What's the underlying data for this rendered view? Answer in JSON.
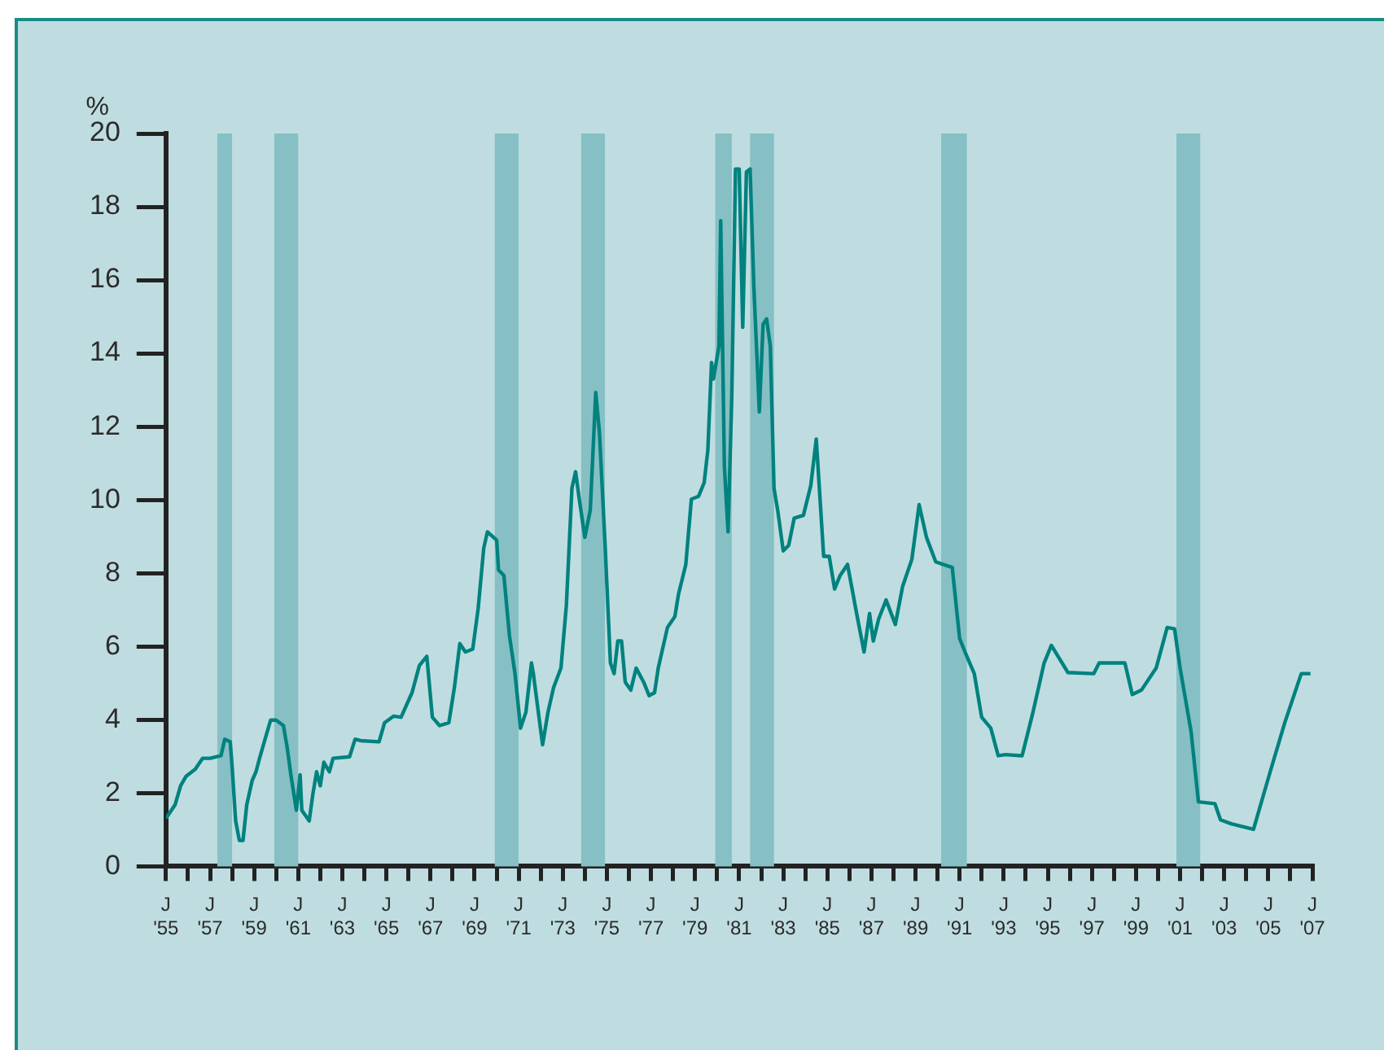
{
  "chart_data": {
    "type": "line",
    "ylabel": "%",
    "xlim": [
      "1955-01",
      "2007-01"
    ],
    "ylim": [
      0,
      20
    ],
    "yticks": [
      0,
      2,
      4,
      6,
      8,
      10,
      12,
      14,
      16,
      18,
      20
    ],
    "xticks": [
      {
        "value": "1955-01",
        "label": "J\n'55"
      },
      {
        "value": "1956-01",
        "label": null
      },
      {
        "value": "1957-01",
        "label": "J\n'57"
      },
      {
        "value": "1958-01",
        "label": null
      },
      {
        "value": "1959-01",
        "label": "J\n'59"
      },
      {
        "value": "1960-01",
        "label": null
      },
      {
        "value": "1961-01",
        "label": "J\n'61"
      },
      {
        "value": "1962-01",
        "label": null
      },
      {
        "value": "1963-01",
        "label": "J\n'63"
      },
      {
        "value": "1964-01",
        "label": null
      },
      {
        "value": "1965-01",
        "label": "J\n'65"
      },
      {
        "value": "1966-01",
        "label": null
      },
      {
        "value": "1967-01",
        "label": "J\n'67"
      },
      {
        "value": "1968-01",
        "label": null
      },
      {
        "value": "1969-01",
        "label": "J\n'69"
      },
      {
        "value": "1970-01",
        "label": null
      },
      {
        "value": "1971-01",
        "label": "J\n'71"
      },
      {
        "value": "1972-01",
        "label": null
      },
      {
        "value": "1973-01",
        "label": "J\n'73"
      },
      {
        "value": "1974-01",
        "label": null
      },
      {
        "value": "1975-01",
        "label": "J\n'75"
      },
      {
        "value": "1976-01",
        "label": null
      },
      {
        "value": "1977-01",
        "label": "J\n'77"
      },
      {
        "value": "1978-01",
        "label": null
      },
      {
        "value": "1979-01",
        "label": "J\n'79"
      },
      {
        "value": "1980-01",
        "label": null
      },
      {
        "value": "1981-01",
        "label": "J\n'81"
      },
      {
        "value": "1982-01",
        "label": null
      },
      {
        "value": "1983-01",
        "label": "J\n'83"
      },
      {
        "value": "1984-01",
        "label": null
      },
      {
        "value": "1985-01",
        "label": "J\n'85"
      },
      {
        "value": "1986-01",
        "label": null
      },
      {
        "value": "1987-01",
        "label": "J\n'87"
      },
      {
        "value": "1988-01",
        "label": null
      },
      {
        "value": "1989-01",
        "label": "J\n'89"
      },
      {
        "value": "1990-01",
        "label": null
      },
      {
        "value": "1991-01",
        "label": "J\n'91"
      },
      {
        "value": "1992-01",
        "label": null
      },
      {
        "value": "1993-01",
        "label": "J\n'93"
      },
      {
        "value": "1994-01",
        "label": null
      },
      {
        "value": "1995-01",
        "label": "J\n'95"
      },
      {
        "value": "1996-01",
        "label": null
      },
      {
        "value": "1997-01",
        "label": "J\n'97"
      },
      {
        "value": "1998-01",
        "label": null
      },
      {
        "value": "1999-01",
        "label": "J\n'99"
      },
      {
        "value": "2000-01",
        "label": null
      },
      {
        "value": "2001-01",
        "label": "J\n'01"
      },
      {
        "value": "2002-01",
        "label": null
      },
      {
        "value": "2003-01",
        "label": "J\n'03"
      },
      {
        "value": "2004-01",
        "label": null
      },
      {
        "value": "2005-01",
        "label": "J\n'05"
      },
      {
        "value": "2006-01",
        "label": null
      },
      {
        "value": "2007-01",
        "label": "J\n'07"
      }
    ],
    "bands": [
      {
        "axis": "x",
        "from": "1957-05",
        "to": "1958-01",
        "color": "#86c0c4"
      },
      {
        "axis": "x",
        "from": "1959-12",
        "to": "1961-01",
        "color": "#86c0c4"
      },
      {
        "axis": "x",
        "from": "1969-12",
        "to": "1971-01",
        "color": "#86c0c4"
      },
      {
        "axis": "x",
        "from": "1973-11",
        "to": "1974-12",
        "color": "#86c0c4"
      },
      {
        "axis": "x",
        "from": "1979-12",
        "to": "1980-09",
        "color": "#86c0c4"
      },
      {
        "axis": "x",
        "from": "1981-07",
        "to": "1982-08",
        "color": "#86c0c4"
      },
      {
        "axis": "x",
        "from": "1990-03",
        "to": "1991-05",
        "color": "#86c0c4"
      },
      {
        "axis": "x",
        "from": "2000-11",
        "to": "2001-12",
        "color": "#86c0c4"
      }
    ],
    "grid": false,
    "legend": false,
    "marker": "none",
    "line_style": "solid",
    "series": [
      {
        "color": "#00827f",
        "x": [
          "1955-01",
          "1955-06",
          "1955-09",
          "1955-12",
          "1956-05",
          "1956-09",
          "1957-01",
          "1957-07",
          "1957-09",
          "1957-12",
          "1958-01",
          "1958-03",
          "1958-05",
          "1958-07",
          "1958-09",
          "1958-12",
          "1959-02",
          "1959-04",
          "1959-07",
          "1959-10",
          "1960-01",
          "1960-05",
          "1960-07",
          "1960-09",
          "1960-12",
          "1961-02",
          "1961-03",
          "1961-07",
          "1961-09",
          "1961-11",
          "1962-01",
          "1962-03",
          "1962-06",
          "1962-08",
          "1963-05",
          "1963-08",
          "1963-11",
          "1964-09",
          "1964-12",
          "1965-05",
          "1965-09",
          "1966-03",
          "1966-07",
          "1966-11",
          "1967-02",
          "1967-06",
          "1967-11",
          "1968-02",
          "1968-05",
          "1968-08",
          "1968-12",
          "1969-03",
          "1969-06",
          "1969-08",
          "1970-01",
          "1970-02",
          "1970-05",
          "1970-08",
          "1970-11",
          "1971-02",
          "1971-05",
          "1971-08",
          "1971-09",
          "1972-02",
          "1972-05",
          "1972-08",
          "1972-12",
          "1973-03",
          "1973-06",
          "1973-08",
          "1973-10",
          "1974-01",
          "1974-04",
          "1974-07",
          "1974-09",
          "1974-12",
          "1975-03",
          "1975-05",
          "1975-07",
          "1975-09",
          "1975-11",
          "1976-02",
          "1976-05",
          "1976-09",
          "1976-12",
          "1977-03",
          "1977-05",
          "1977-10",
          "1978-02",
          "1978-04",
          "1978-08",
          "1978-11",
          "1979-03",
          "1979-06",
          "1979-08",
          "1979-10",
          "1979-11",
          "1980-02",
          "1980-03",
          "1980-05",
          "1980-07",
          "1980-09",
          "1980-11",
          "1981-01",
          "1981-03",
          "1981-05",
          "1981-07",
          "1981-09",
          "1981-12",
          "1982-02",
          "1982-04",
          "1982-06",
          "1982-08",
          "1982-10",
          "1983-01",
          "1983-04",
          "1983-07",
          "1983-12",
          "1984-04",
          "1984-07",
          "1984-11",
          "1985-02",
          "1985-05",
          "1985-08",
          "1985-12",
          "1986-05",
          "1986-09",
          "1986-12",
          "1987-02",
          "1987-05",
          "1987-09",
          "1988-02",
          "1988-06",
          "1988-11",
          "1989-03",
          "1989-07",
          "1989-12",
          "1990-04",
          "1990-09",
          "1991-01",
          "1991-04",
          "1991-09",
          "1992-01",
          "1992-06",
          "1992-10",
          "1993-02",
          "1993-11",
          "1994-05",
          "1994-11",
          "1995-03",
          "1995-06",
          "1995-12",
          "1997-02",
          "1997-05",
          "1998-07",
          "1998-11",
          "1999-04",
          "1999-12",
          "2000-06",
          "2000-10",
          "2001-01",
          "2001-07",
          "2001-11",
          "2002-08",
          "2002-11",
          "2003-05",
          "2004-05",
          "2005-02",
          "2005-10",
          "2006-07",
          "2006-12"
        ],
        "values": [
          1.31,
          1.68,
          2.2,
          2.46,
          2.65,
          2.95,
          2.95,
          3.02,
          3.47,
          3.4,
          2.73,
          1.24,
          0.71,
          0.71,
          1.68,
          2.35,
          2.58,
          2.95,
          3.47,
          3.99,
          3.99,
          3.84,
          3.25,
          2.5,
          1.53,
          2.5,
          1.53,
          1.24,
          1.98,
          2.58,
          2.2,
          2.84,
          2.58,
          2.95,
          2.99,
          3.47,
          3.43,
          3.4,
          3.92,
          4.1,
          4.07,
          4.74,
          5.48,
          5.73,
          4.07,
          3.84,
          3.92,
          4.88,
          6.08,
          5.85,
          5.93,
          7.04,
          8.68,
          9.13,
          8.9,
          8.09,
          7.94,
          6.3,
          5.26,
          3.77,
          4.21,
          5.55,
          5.26,
          3.32,
          4.21,
          4.88,
          5.41,
          7.12,
          10.32,
          10.77,
          10.02,
          8.98,
          9.72,
          12.93,
          11.81,
          8.83,
          5.55,
          5.26,
          6.15,
          6.15,
          5.03,
          4.81,
          5.41,
          5.03,
          4.66,
          4.74,
          5.41,
          6.52,
          6.82,
          7.42,
          8.24,
          10.02,
          10.1,
          10.47,
          11.36,
          13.75,
          13.3,
          14.19,
          17.62,
          10.92,
          9.13,
          12.85,
          19.03,
          19.03,
          14.71,
          18.95,
          19.03,
          15.83,
          12.4,
          14.79,
          14.94,
          14.19,
          10.32,
          9.72,
          8.61,
          8.76,
          9.5,
          9.58,
          10.39,
          11.66,
          8.46,
          8.46,
          7.57,
          7.94,
          8.24,
          6.9,
          5.85,
          6.9,
          6.15,
          6.75,
          7.27,
          6.6,
          7.64,
          8.38,
          9.87,
          8.98,
          8.31,
          8.24,
          8.16,
          6.22,
          5.85,
          5.26,
          4.07,
          3.77,
          3.02,
          3.05,
          3.02,
          4.21,
          5.55,
          6.03,
          5.78,
          5.29,
          5.26,
          5.55,
          5.55,
          4.69,
          4.81,
          5.41,
          6.52,
          6.48,
          5.41,
          3.69,
          1.76,
          1.71,
          1.27,
          1.16,
          1.01,
          2.58,
          3.92,
          5.26,
          5.26
        ]
      }
    ]
  }
}
